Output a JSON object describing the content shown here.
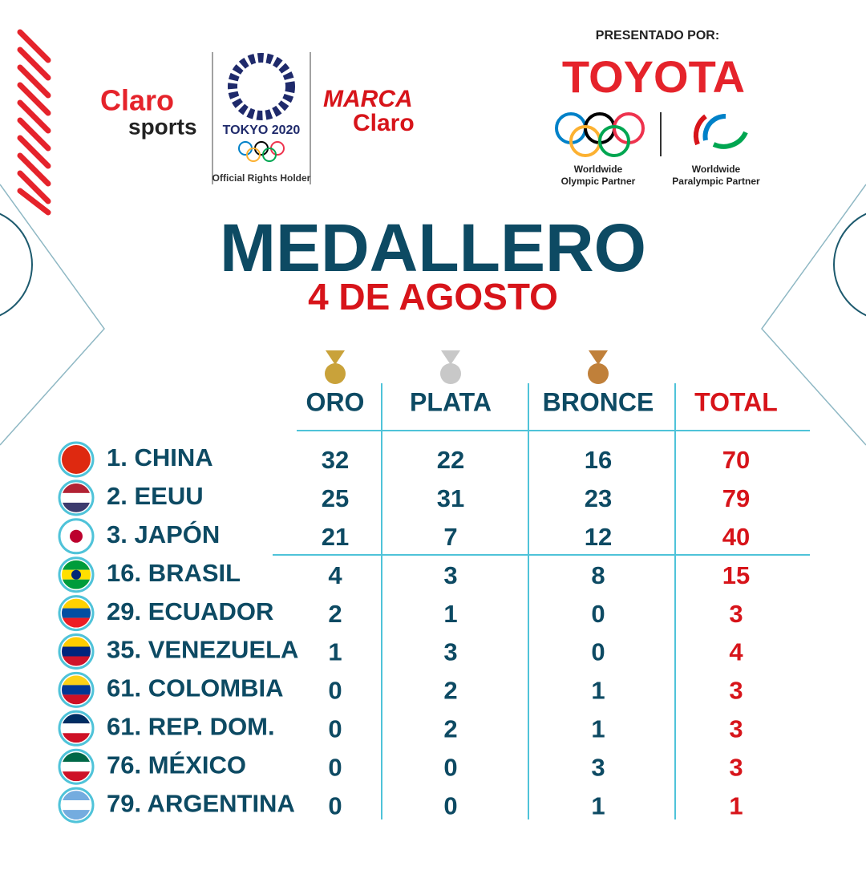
{
  "header": {
    "presented_by": "PRESENTADO POR:",
    "sponsor": "TOYOTA",
    "olympic_partner_1": "Worldwide",
    "olympic_partner_2": "Olympic Partner",
    "paralympic_partner_1": "Worldwide",
    "paralympic_partner_2": "Paralympic Partner",
    "claro": "Claro",
    "sports": "sports",
    "tokyo": "TOKYO 2020",
    "rights": "Official Rights Holder",
    "marca": "MARCA",
    "marca_claro": "Claro"
  },
  "title": "MEDALLERO",
  "subtitle": "4 DE AGOSTO",
  "table": {
    "columns": [
      "ORO",
      "PLATA",
      "BRONCE",
      "TOTAL"
    ],
    "rows": [
      {
        "name": "1. CHINA",
        "values": [
          32,
          22,
          16,
          70
        ]
      },
      {
        "name": "2. EEUU",
        "values": [
          25,
          31,
          23,
          79
        ]
      },
      {
        "name": "3. JAPÓN",
        "values": [
          21,
          7,
          12,
          40
        ]
      },
      {
        "name": "16. BRASIL",
        "values": [
          4,
          3,
          8,
          15
        ]
      },
      {
        "name": "29. ECUADOR",
        "values": [
          2,
          1,
          0,
          3
        ]
      },
      {
        "name": "35. VENEZUELA",
        "values": [
          1,
          3,
          0,
          4
        ]
      },
      {
        "name": "61. COLOMBIA",
        "values": [
          0,
          2,
          1,
          3
        ]
      },
      {
        "name": "61. REP. DOM.",
        "values": [
          0,
          2,
          1,
          3
        ]
      },
      {
        "name": "76. MÉXICO",
        "values": [
          0,
          0,
          3,
          3
        ]
      },
      {
        "name": "79. ARGENTINA",
        "values": [
          0,
          0,
          1,
          1
        ]
      }
    ]
  }
}
